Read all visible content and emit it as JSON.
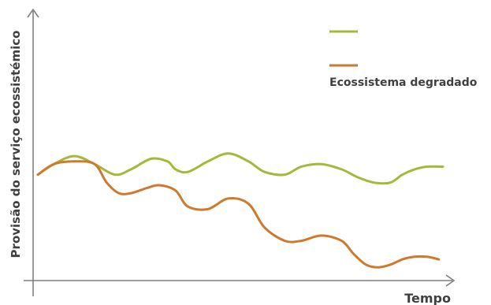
{
  "chart_data": {
    "type": "line",
    "title": "",
    "xlabel": "Tempo",
    "ylabel": "Provisão do serviço ecossistémico",
    "grid": false,
    "legend_position": "top-right",
    "xlim": [
      0,
      100
    ],
    "ylim": [
      0,
      100
    ],
    "series": [
      {
        "name": "",
        "color": "#a4b93a",
        "x": [
          0,
          4,
          9,
          14,
          19,
          23,
          28,
          32,
          34,
          37,
          42,
          47,
          52,
          56,
          61,
          65,
          70,
          75,
          79,
          83,
          87,
          90,
          93,
          96,
          100
        ],
        "y": [
          40,
          44,
          47,
          44,
          40,
          42,
          46,
          45,
          42,
          41,
          45,
          48,
          45,
          41,
          40,
          43,
          44,
          42,
          39,
          37,
          37,
          40,
          42,
          43,
          43
        ]
      },
      {
        "name": "Ecossistema degradado",
        "color": "#cd7a2c",
        "x": [
          0,
          4,
          9,
          14,
          17,
          20,
          23,
          27,
          30,
          34,
          37,
          42,
          47,
          52,
          56,
          61,
          65,
          70,
          75,
          78,
          81,
          84,
          87,
          90,
          93,
          96,
          99
        ],
        "y": [
          40,
          44,
          45,
          44,
          37,
          33,
          33,
          35,
          36,
          34,
          28,
          27,
          31,
          29,
          20,
          15,
          15,
          17,
          15,
          10,
          6,
          5,
          6,
          8,
          9,
          9,
          8
        ]
      }
    ]
  }
}
